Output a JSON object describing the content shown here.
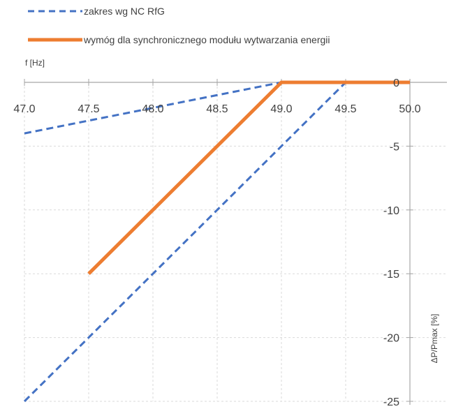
{
  "chart_data": {
    "type": "line",
    "xlabel": "f [Hz]",
    "ylabel": "ΔP/Pmax [%]",
    "xlim": [
      47.0,
      50.0
    ],
    "ylim": [
      -25,
      0
    ],
    "x_ticks": [
      "47.0",
      "47.5",
      "48.0",
      "48.5",
      "49.0",
      "49.5",
      "50.0"
    ],
    "y_ticks": [
      "0",
      "-5",
      "-10",
      "-15",
      "-20",
      "-25"
    ],
    "grid": true,
    "legend_position": "top-left",
    "series": [
      {
        "name": "zakres wg NC RfG",
        "style": "dashed",
        "color": "#4472c4",
        "segments": [
          [
            [
              47.0,
              -4
            ],
            [
              49.0,
              0
            ]
          ],
          [
            [
              47.0,
              -25
            ],
            [
              49.5,
              0
            ]
          ]
        ]
      },
      {
        "name": "wymóg dla synchronicznego modułu wytwarzania energii",
        "style": "solid",
        "color": "#ed7d31",
        "segments": [
          [
            [
              47.5,
              -15
            ],
            [
              49.0,
              0
            ],
            [
              50.0,
              0
            ]
          ]
        ]
      }
    ]
  }
}
